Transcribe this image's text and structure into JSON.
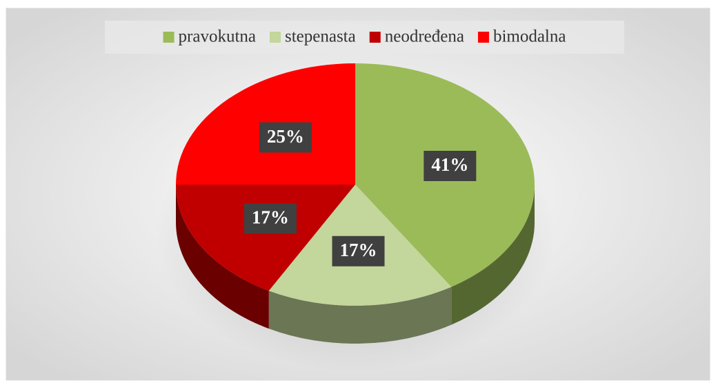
{
  "chart_data": {
    "type": "pie",
    "categories": [
      "pravokutna",
      "stepenasta",
      "neodređena",
      "bimodalna"
    ],
    "values": [
      41,
      17,
      17,
      25
    ],
    "value_labels": [
      "41%",
      "17%",
      "17%",
      "25%"
    ],
    "colors": [
      "#9bbb59",
      "#c3d69b",
      "#c00000",
      "#ff0000"
    ],
    "legend": "top"
  }
}
